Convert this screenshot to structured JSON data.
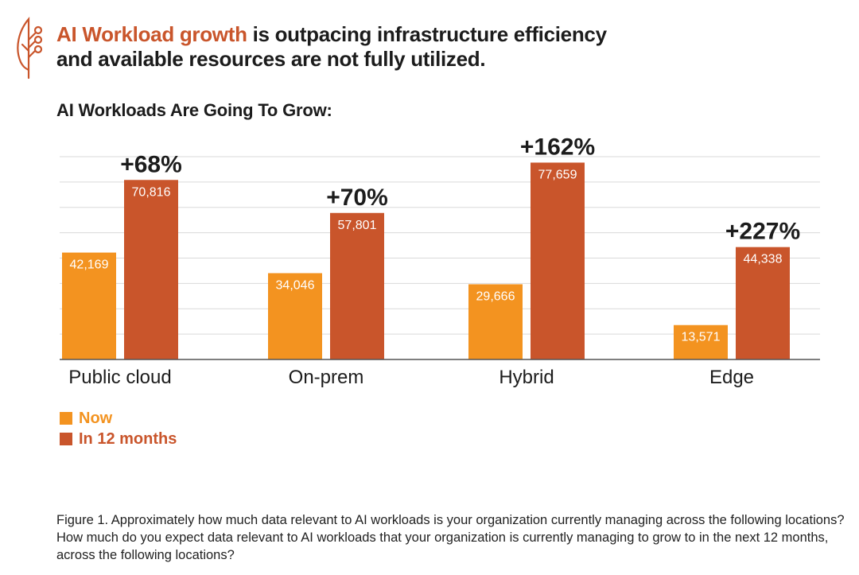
{
  "header": {
    "logo_icon": "leaf-circuit-icon",
    "headline_accent": "AI Workload growth",
    "headline_rest": " is outpacing infrastructure efficiency",
    "headline_line2": "and available resources are not fully utilized."
  },
  "colors": {
    "now": "#f39320",
    "in_12_months": "#c9552b",
    "accent": "#c9552b",
    "grid": "#d9d9d9",
    "axis": "#555555"
  },
  "chart_data": {
    "type": "bar",
    "title": "AI Workloads Are Going To Grow:",
    "categories": [
      "Public cloud",
      "On-prem",
      "Hybrid",
      "Edge"
    ],
    "series": [
      {
        "name": "Now",
        "values": [
          42169,
          34046,
          29666,
          13571
        ],
        "labels": [
          "42,169",
          "34,046",
          "29,666",
          "13,571"
        ]
      },
      {
        "name": "In 12 months",
        "values": [
          70816,
          57801,
          77659,
          44338
        ],
        "labels": [
          "70,816",
          "57,801",
          "77,659",
          "44,338"
        ]
      }
    ],
    "growth_labels": [
      "+68%",
      "+70%",
      "+162%",
      "+227%"
    ],
    "ylim": [
      0,
      80000
    ],
    "y_gridline_step": 10000,
    "y_ticks_visible": false,
    "grid": true,
    "legend_position": "bottom-left",
    "xlabel": "",
    "ylabel": ""
  },
  "legend": [
    {
      "label": "Now"
    },
    {
      "label": "In 12 months"
    }
  ],
  "caption": "Figure 1. Approximately how much data relevant to AI workloads is your organization currently managing across the following locations? How much do you expect data relevant to AI workloads that your organization is currently managing to grow to in the next 12 months, across the following locations?"
}
